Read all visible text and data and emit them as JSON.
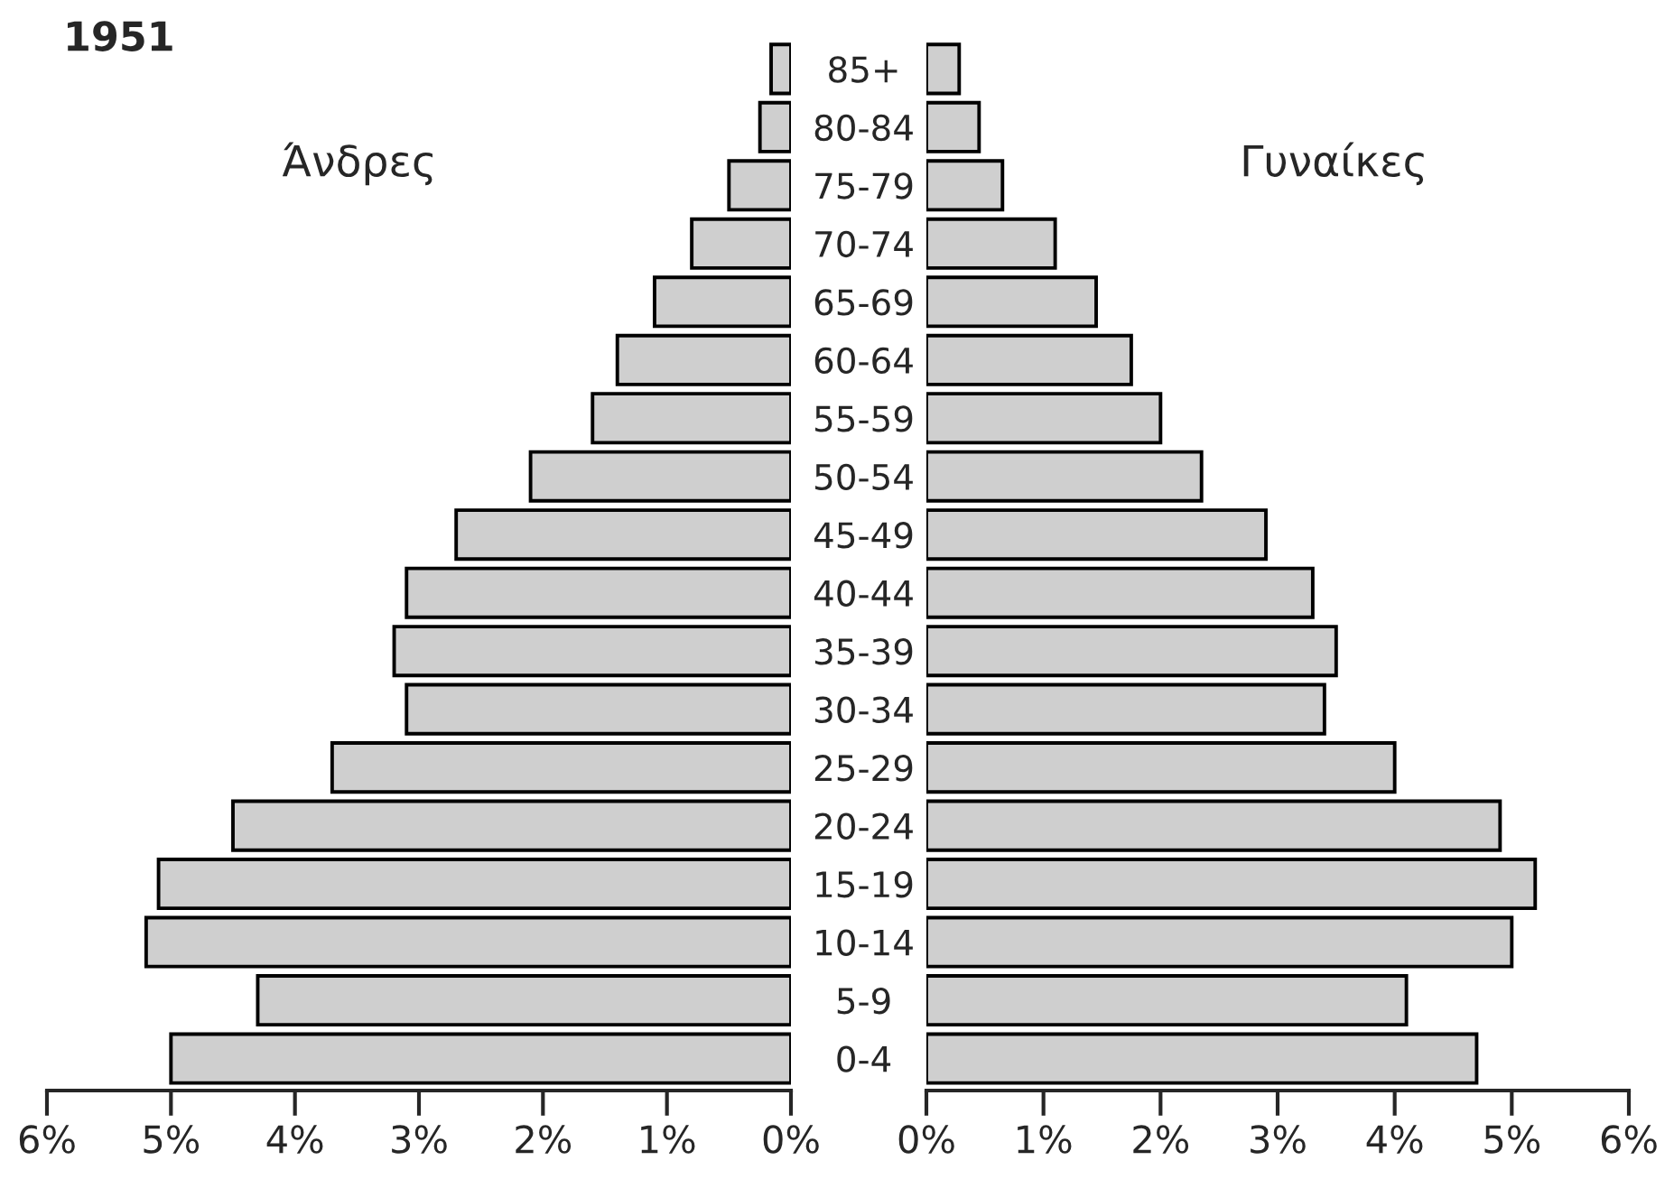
{
  "chart_data": [
    {
      "type": "bar",
      "orientation": "horizontal",
      "title": "1951",
      "annotations": [
        "Άνδρες"
      ],
      "categories": [
        "85+",
        "80-84",
        "75-79",
        "70-74",
        "65-69",
        "60-64",
        "55-59",
        "50-54",
        "45-49",
        "40-44",
        "35-39",
        "30-34",
        "25-29",
        "20-24",
        "15-19",
        "10-14",
        "5-9",
        "0-4"
      ],
      "values": [
        0.16,
        0.25,
        0.5,
        0.8,
        1.1,
        1.4,
        1.6,
        2.1,
        2.7,
        3.1,
        3.2,
        3.1,
        3.7,
        4.5,
        5.1,
        5.2,
        4.3,
        5.0
      ],
      "color": "#cfcfcf",
      "xlim": [
        6,
        0
      ],
      "xticks": [
        {
          "value": 6,
          "label": "6%"
        },
        {
          "value": 5,
          "label": "5%"
        },
        {
          "value": 4,
          "label": "4%"
        },
        {
          "value": 3,
          "label": "3%"
        },
        {
          "value": 2,
          "label": "2%"
        },
        {
          "value": 1,
          "label": "1%"
        },
        {
          "value": 0,
          "label": "0%"
        }
      ],
      "grid": false,
      "legend": false
    },
    {
      "type": "bar",
      "orientation": "horizontal",
      "annotations": [
        "Γυναίκες"
      ],
      "categories": [
        null,
        null,
        null,
        null,
        null,
        null,
        null,
        null,
        null,
        null,
        null,
        null,
        null,
        null,
        null,
        null,
        null,
        null
      ],
      "values": [
        0.28,
        0.45,
        0.65,
        1.1,
        1.45,
        1.75,
        2.0,
        2.35,
        2.9,
        3.3,
        3.5,
        3.4,
        4.0,
        4.9,
        5.2,
        5.0,
        4.1,
        4.7
      ],
      "color": "#cfcfcf",
      "xlim": [
        0,
        6
      ],
      "tick_labels": "x",
      "xticks": [
        {
          "value": 0,
          "label": "0%"
        },
        {
          "value": 1,
          "label": "1%"
        },
        {
          "value": 2,
          "label": "2%"
        },
        {
          "value": 3,
          "label": "3%"
        },
        {
          "value": 4,
          "label": "4%"
        },
        {
          "value": 5,
          "label": "5%"
        },
        {
          "value": 6,
          "label": "6%"
        }
      ],
      "grid": false,
      "legend": false
    }
  ]
}
